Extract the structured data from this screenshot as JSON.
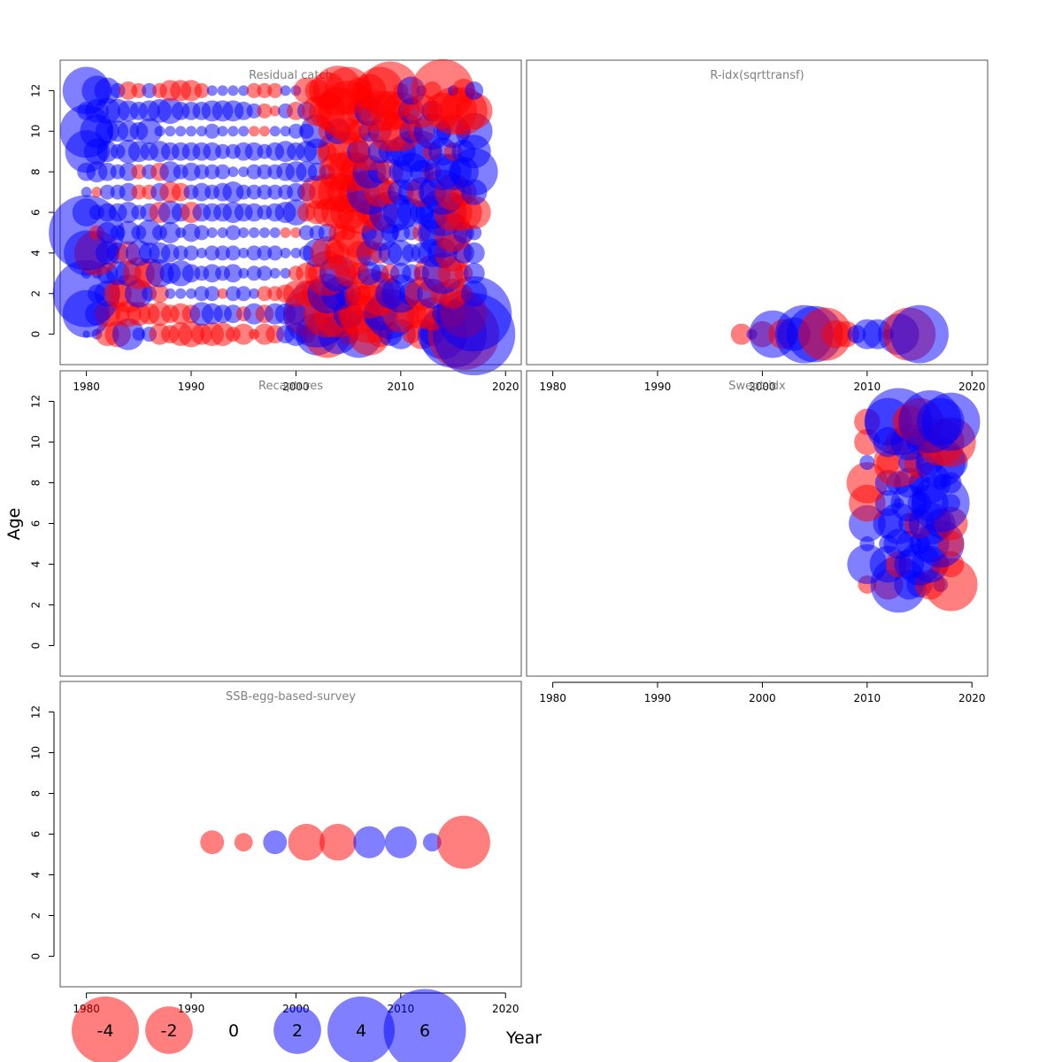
{
  "figure": {
    "y_axis_title": "Age",
    "x_axis_title": "Year"
  },
  "colors": {
    "positive": "#0000ff",
    "negative": "#ff0000",
    "panel_title": "#808080",
    "axis": "#000000"
  },
  "legend": {
    "values": [
      -4,
      -2,
      0,
      2,
      4,
      6
    ],
    "labels": [
      "-4",
      "-2",
      "0",
      "2",
      "4",
      "6"
    ]
  },
  "chart_data": [
    {
      "type": "scatter",
      "title": "Residual catch",
      "xlim": [
        1977.5,
        2021.5
      ],
      "ylim": [
        -1.5,
        13.5
      ],
      "x_ticks": [
        "1980",
        "1990",
        "2000",
        "2010",
        "2020"
      ],
      "y_ticks": [
        "0",
        "2",
        "4",
        "6",
        "8",
        "10",
        "12"
      ],
      "bubble_encoding": "radius proportional to sqrt(|residual|); blue positive, red negative",
      "years": [
        1980,
        1981,
        1982,
        1983,
        1984,
        1985,
        1986,
        1987,
        1988,
        1989,
        1990,
        1991,
        1992,
        1993,
        1994,
        1995,
        1996,
        1997,
        1998,
        1999,
        2000,
        2001,
        2002,
        2003,
        2004,
        2005,
        2006,
        2007,
        2008,
        2009,
        2010,
        2011,
        2012,
        2013,
        2014,
        2015,
        2016,
        2017
      ],
      "ages": [
        0,
        1,
        2,
        3,
        4,
        5,
        6,
        7,
        8,
        9,
        10,
        11,
        12
      ],
      "residuals_by_age": [
        [
          0.05,
          0.1,
          -0.5,
          -0.6,
          0.9,
          0.15,
          0.2,
          -0.4,
          -0.3,
          -0.5,
          -0.6,
          -0.4,
          -0.5,
          -0.5,
          -0.2,
          -0.4,
          -0.1,
          -0.4,
          -0.3,
          0.3,
          0.5,
          -0.3,
          1.6,
          -2.0,
          1.4,
          -0.4,
          2.0,
          -1.6,
          -0.6,
          0.5,
          0.8,
          -0.3,
          -0.8,
          0.5,
          2.2,
          4.0,
          -4.5,
          6.0
        ],
        [
          2.0,
          0.5,
          -0.6,
          -0.5,
          -0.6,
          -0.5,
          -0.4,
          -0.5,
          -0.3,
          -0.4,
          -0.3,
          0.5,
          0.4,
          0.3,
          0.3,
          -0.2,
          0.4,
          -0.3,
          0.4,
          0.4,
          0.4,
          -1.8,
          4.0,
          -2.0,
          -2.0,
          0.8,
          -1.5,
          -3.0,
          1.0,
          2.2,
          -1.2,
          -0.8,
          -0.8,
          -1.0,
          0.4,
          -0.6,
          -2.0,
          5.0
        ],
        [
          4.0,
          0.3,
          0.6,
          -0.7,
          -1.3,
          0.7,
          0.2,
          -0.3,
          0.1,
          0.1,
          0.1,
          0.2,
          0.2,
          -0.1,
          0.2,
          0.2,
          0.1,
          -0.2,
          -0.2,
          -0.3,
          -0.6,
          -0.6,
          -0.8,
          1.4,
          1.0,
          0.6,
          -0.5,
          -2.2,
          -1.7,
          0.8,
          1.3,
          0.5,
          -1.0,
          0.8,
          -0.5,
          -0.8,
          -0.3,
          0.6
        ],
        [
          0.1,
          0.1,
          0.4,
          0.5,
          0.6,
          -0.9,
          -0.8,
          0.7,
          0.4,
          0.6,
          0.3,
          0.2,
          0.3,
          0.2,
          0.3,
          0.1,
          0.2,
          0.2,
          0.1,
          0.1,
          -0.2,
          -0.4,
          -0.3,
          -1.8,
          1.2,
          -0.6,
          -0.4,
          0.5,
          0.3,
          -0.3,
          0.4,
          0.3,
          0.2,
          -1.2,
          1.5,
          -0.8,
          -0.3,
          0.4
        ],
        [
          1.8,
          -1.8,
          0.5,
          0.4,
          -0.5,
          0.6,
          0.4,
          0.4,
          0.3,
          0.2,
          0.2,
          0.1,
          0.2,
          0.2,
          0.2,
          0.1,
          0.2,
          0.2,
          0.2,
          0.1,
          0.1,
          0.2,
          0.7,
          -1.0,
          -0.5,
          -2.0,
          -0.5,
          0.6,
          -0.4,
          0.5,
          0.6,
          0.3,
          0.4,
          0.7,
          0.8,
          -1.2,
          0.4,
          0.4
        ],
        [
          5.0,
          -0.2,
          0.4,
          0.2,
          0.5,
          0.2,
          0.6,
          0.2,
          0.4,
          0.1,
          0.3,
          0.2,
          0.1,
          0.1,
          0.2,
          0.1,
          0.1,
          0.1,
          0.1,
          -0.1,
          -0.1,
          0.2,
          0.2,
          0.3,
          -0.3,
          -0.2,
          -2.2,
          0.2,
          1.2,
          0.3,
          0.3,
          0.2,
          -0.3,
          0.6,
          2.2,
          -1.3,
          0.4,
          0.2
        ],
        [
          0.7,
          0.2,
          0.3,
          0.3,
          0.4,
          0.2,
          0.3,
          -0.4,
          0.5,
          0.3,
          -0.4,
          0.3,
          0.3,
          0.3,
          0.4,
          0.3,
          0.3,
          0.2,
          0.3,
          0.4,
          0.6,
          -0.3,
          -0.5,
          -0.7,
          -1.0,
          -1.2,
          -1.6,
          -0.6,
          -1.2,
          1.6,
          1.1,
          0.7,
          0.5,
          1.0,
          2.0,
          -1.3,
          -1.2,
          -1.0
        ],
        [
          0.1,
          -0.1,
          0.2,
          0.2,
          0.3,
          -0.2,
          -0.2,
          0.3,
          -0.4,
          -0.3,
          0.2,
          0.3,
          0.2,
          0.3,
          0.4,
          0.2,
          0.2,
          0.2,
          0.2,
          0.2,
          0.3,
          0.3,
          -1.0,
          -1.2,
          -1.4,
          -1.6,
          -1.5,
          1.8,
          -0.8,
          -0.5,
          0.6,
          0.6,
          -0.8,
          0.7,
          1.8,
          -1.2,
          -0.6,
          0.6
        ],
        [
          0.3,
          0.4,
          0.3,
          0.2,
          0.3,
          -0.2,
          0.2,
          -0.3,
          0.4,
          0.2,
          0.3,
          0.2,
          0.2,
          0.2,
          0.1,
          0.1,
          0.2,
          0.2,
          0.2,
          0.3,
          0.4,
          0.4,
          0.3,
          0.2,
          -1.3,
          -1.5,
          -1.3,
          1.0,
          0.5,
          -0.6,
          0.5,
          1.3,
          0.5,
          -0.3,
          1.2,
          1.2,
          0.8,
          2.0
        ],
        [
          1.6,
          0.6,
          0.4,
          0.2,
          0.5,
          0.4,
          0.3,
          0.4,
          0.3,
          0.3,
          0.3,
          0.3,
          0.3,
          0.2,
          0.2,
          0.3,
          0.3,
          0.2,
          0.3,
          0.4,
          0.3,
          0.4,
          0.6,
          -0.3,
          -1.5,
          -1.5,
          0.5,
          -1.3,
          0.5,
          0.5,
          0.8,
          1.5,
          1.5,
          -0.3,
          0.7,
          -0.3,
          0.5,
          1.0
        ],
        [
          2.5,
          1.0,
          0.5,
          0.4,
          0.4,
          0.3,
          0.6,
          0.1,
          0.1,
          0.1,
          0.1,
          0.1,
          0.2,
          0.1,
          0.1,
          0.1,
          -0.1,
          -0.1,
          0.1,
          0.1,
          0.2,
          0.2,
          1.0,
          -0.3,
          0.6,
          -0.6,
          -0.5,
          0.4,
          0.5,
          -1.5,
          -1.5,
          0.5,
          -0.6,
          1.2,
          0.3,
          1.0,
          -0.2,
          1.2
        ],
        [
          0.3,
          0.5,
          0.6,
          0.5,
          0.4,
          0.3,
          0.4,
          0.5,
          0.6,
          0.3,
          0.3,
          0.3,
          0.4,
          0.4,
          0.4,
          0.3,
          0.2,
          -0.2,
          -0.1,
          0.2,
          -0.3,
          0.3,
          -0.8,
          -1.2,
          -2.0,
          -3.2,
          -0.6,
          0.8,
          -1.5,
          -1.4,
          -1.3,
          0.6,
          -1.0,
          0.4,
          -1.2,
          -2.0,
          -2.0,
          -1.2
        ],
        [
          2.0,
          0.8,
          0.6,
          0.2,
          -0.3,
          -0.2,
          0.2,
          -0.2,
          -0.4,
          -0.4,
          -0.4,
          -0.2,
          0.1,
          0.1,
          0.1,
          0.1,
          -0.2,
          -0.2,
          -0.2,
          0.1,
          0.1,
          -0.6,
          -0.5,
          -1.2,
          -2.2,
          -2.0,
          -0.6,
          -1.0,
          -2.0,
          -3.0,
          -0.2,
          0.7,
          0.1,
          -0.3,
          -3.5,
          0.1,
          -0.5,
          0.3
        ]
      ]
    },
    {
      "type": "scatter",
      "title": "R-idx(sqrttransf)",
      "xlim": [
        1977.5,
        2021.5
      ],
      "ylim": [
        -1.5,
        13.5
      ],
      "x_ticks": [
        "1980",
        "1990",
        "2000",
        "2010",
        "2020"
      ],
      "y_ticks": [],
      "points": [
        {
          "x": 1998,
          "y": 0,
          "v": -0.4
        },
        {
          "x": 1999,
          "y": 0,
          "v": 0.1
        },
        {
          "x": 2000,
          "y": 0,
          "v": -0.6
        },
        {
          "x": 2001,
          "y": 0,
          "v": 2.0
        },
        {
          "x": 2002,
          "y": 0,
          "v": -0.8
        },
        {
          "x": 2003,
          "y": 0,
          "v": 1.0
        },
        {
          "x": 2004,
          "y": 0,
          "v": 3.0
        },
        {
          "x": 2005,
          "y": 0,
          "v": 2.8
        },
        {
          "x": 2006,
          "y": 0,
          "v": -2.5
        },
        {
          "x": 2007,
          "y": 0,
          "v": -0.7
        },
        {
          "x": 2008,
          "y": 0,
          "v": -0.6
        },
        {
          "x": 2009,
          "y": 0,
          "v": 0.3
        },
        {
          "x": 2010,
          "y": 0,
          "v": 0.8
        },
        {
          "x": 2011,
          "y": 0,
          "v": 0.8
        },
        {
          "x": 2012,
          "y": 0,
          "v": 0.1
        },
        {
          "x": 2013,
          "y": 0,
          "v": 1.5
        },
        {
          "x": 2014,
          "y": 0,
          "v": -2.5
        },
        {
          "x": 2015,
          "y": 0,
          "v": 3.0
        }
      ]
    },
    {
      "type": "scatter",
      "title": "Recaptures",
      "xlim": [
        1977.5,
        2021.5
      ],
      "ylim": [
        -1.5,
        13.5
      ],
      "x_ticks": [],
      "y_ticks": [
        "0",
        "2",
        "4",
        "6",
        "8",
        "10",
        "12"
      ],
      "points": []
    },
    {
      "type": "scatter",
      "title": "Swept-idx",
      "xlim": [
        1977.5,
        2021.5
      ],
      "ylim": [
        -1.5,
        13.5
      ],
      "x_ticks": [
        "1980",
        "1990",
        "2000",
        "2010",
        "2020"
      ],
      "y_ticks": [],
      "years": [
        2010,
        2011,
        2012,
        2013,
        2014,
        2015,
        2016,
        2017,
        2018
      ],
      "ages": [
        3,
        4,
        5,
        6,
        7,
        8,
        9,
        10,
        11
      ],
      "residuals_by_age": [
        [
          -0.3,
          null,
          -0.8,
          2.8,
          0.8,
          0.6,
          -0.8,
          0.2,
          -2.5
        ],
        [
          1.4,
          null,
          1.2,
          -0.6,
          0.8,
          1.6,
          1.2,
          -0.3,
          -0.6
        ],
        [
          0.2,
          null,
          0.3,
          0.8,
          0.6,
          0.4,
          1.3,
          2.0,
          -0.6
        ],
        [
          1.2,
          null,
          0.8,
          1.5,
          0.4,
          -0.8,
          1.6,
          0.8,
          -1.0
        ],
        [
          -1.2,
          null,
          0.6,
          0.1,
          1.2,
          0.5,
          1.2,
          3.0,
          0.3
        ],
        [
          -1.5,
          null,
          0.6,
          0.5,
          0.8,
          0.4,
          1.5,
          0.2,
          0.4
        ],
        [
          0.2,
          null,
          -0.5,
          -2.2,
          0.4,
          -0.8,
          0.6,
          2.2,
          1.0
        ],
        [
          -0.6,
          null,
          0.8,
          -0.6,
          1.2,
          0.6,
          -0.7,
          -2.0,
          -2.2
        ],
        [
          -0.6,
          null,
          2.0,
          4.0,
          -1.0,
          -2.0,
          3.5,
          2.0,
          3.0
        ]
      ]
    },
    {
      "type": "scatter",
      "title": "SSB-egg-based-survey",
      "xlim": [
        1977.5,
        2021.5
      ],
      "ylim": [
        -1.5,
        13.5
      ],
      "x_ticks": [
        "1980",
        "1990",
        "2000",
        "2010",
        "2020"
      ],
      "y_ticks": [
        "0",
        "2",
        "4",
        "6",
        "8",
        "10",
        "12"
      ],
      "points": [
        {
          "x": 1992,
          "y": 5.6,
          "v": -0.5
        },
        {
          "x": 1995,
          "y": 5.6,
          "v": -0.3
        },
        {
          "x": 1998,
          "y": 5.6,
          "v": 0.5
        },
        {
          "x": 2001,
          "y": 5.6,
          "v": -1.2
        },
        {
          "x": 2004,
          "y": 5.6,
          "v": -1.2
        },
        {
          "x": 2007,
          "y": 5.6,
          "v": 0.9
        },
        {
          "x": 2010,
          "y": 5.6,
          "v": 0.9
        },
        {
          "x": 2013,
          "y": 5.6,
          "v": 0.3
        },
        {
          "x": 2016,
          "y": 5.6,
          "v": -2.5
        }
      ]
    }
  ]
}
